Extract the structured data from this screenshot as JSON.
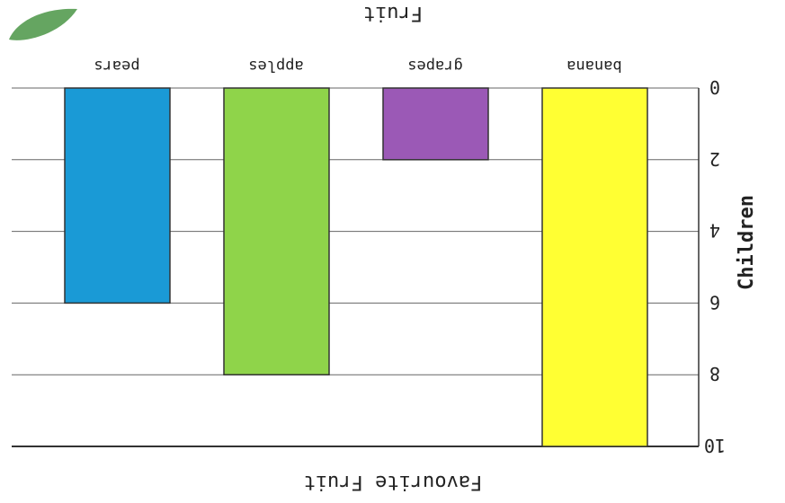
{
  "chart_data": {
    "type": "bar",
    "title": "Favourite Fruit",
    "xlabel": "Fruit",
    "ylabel": "Children",
    "categories": [
      "banana",
      "grapes",
      "apples",
      "pears"
    ],
    "values": [
      10,
      2,
      8,
      6
    ],
    "ylim": [
      0,
      10
    ],
    "yticks": [
      "0",
      "2",
      "4",
      "6",
      "8",
      "10"
    ],
    "grid": true,
    "colors": [
      "#ffff33",
      "#9b59b6",
      "#8fd44a",
      "#1a9ad6"
    ]
  },
  "decoration": {
    "corner_icon": "leaf-icon"
  }
}
